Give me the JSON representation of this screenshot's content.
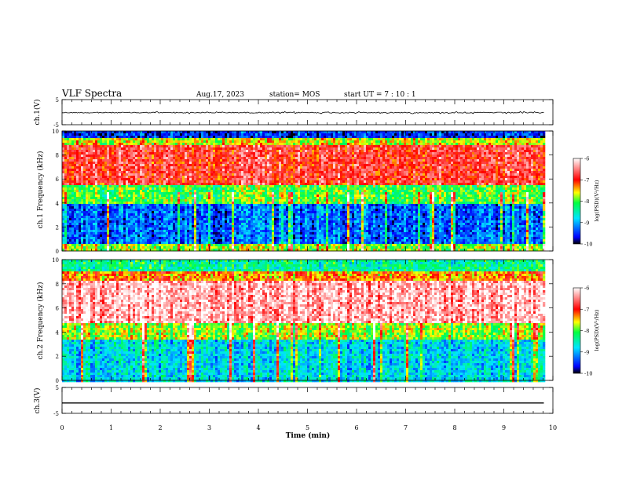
{
  "header": {
    "title": "VLF Spectra",
    "date": "Aug.17, 2023",
    "station": "station= MOS",
    "start": "start  UT =   7 : 10 : 1"
  },
  "chart_data": [
    {
      "type": "line",
      "panel": "ch1-waveform",
      "ylabel": "ch.1(V)",
      "ylim": [
        -5,
        5
      ],
      "yticks": [
        "5",
        "-5"
      ],
      "series": [
        {
          "values_level": -0.2
        }
      ]
    },
    {
      "type": "heatmap",
      "panel": "ch1-spectrogram",
      "ylabel": "ch.1 Frequency (kHz)",
      "ylim": [
        0,
        10
      ],
      "yticks": [
        "0",
        "2",
        "4",
        "6",
        "8",
        "10"
      ],
      "bands_khz": [
        {
          "from": 0,
          "to": 0.6,
          "log_psd": -7.8
        },
        {
          "from": 0.6,
          "to": 4.0,
          "log_psd": -9.3
        },
        {
          "from": 4.0,
          "to": 5.5,
          "log_psd": -8.0
        },
        {
          "from": 5.5,
          "to": 9.0,
          "log_psd": -6.8
        },
        {
          "from": 9.0,
          "to": 9.5,
          "log_psd": -7.6
        },
        {
          "from": 9.5,
          "to": 10,
          "log_psd": -9.5
        }
      ],
      "colorbar": {
        "label": "log(PSD)(V²/Hz)",
        "ticks": [
          "-6",
          "-7",
          "-8",
          "-9",
          "-10"
        ],
        "range": [
          -10,
          -6
        ]
      }
    },
    {
      "type": "heatmap",
      "panel": "ch2-spectrogram",
      "ylabel": "ch.2 Frequency (kHz)",
      "ylim": [
        0,
        10
      ],
      "yticks": [
        "0",
        "2",
        "4",
        "6",
        "8",
        "10"
      ],
      "bands_khz": [
        {
          "from": 0,
          "to": 3.5,
          "log_psd": -8.8
        },
        {
          "from": 3.5,
          "to": 4.8,
          "log_psd": -7.8
        },
        {
          "from": 4.8,
          "to": 8.3,
          "log_psd": -6.3
        },
        {
          "from": 8.3,
          "to": 9.2,
          "log_psd": -7.3
        },
        {
          "from": 9.2,
          "to": 10,
          "log_psd": -8.4
        }
      ],
      "colorbar": {
        "label": "log(PSD)(V²/Hz)",
        "ticks": [
          "-6",
          "-7",
          "-8",
          "-9",
          "-10"
        ],
        "range": [
          -10,
          -6
        ]
      }
    },
    {
      "type": "line",
      "panel": "ch3-waveform",
      "ylabel": "ch.3(V)",
      "ylim": [
        -5,
        5
      ],
      "yticks": [
        "5",
        "-5"
      ],
      "series": [
        {
          "values_level": -1.0
        }
      ]
    }
  ],
  "xaxis": {
    "label": "Time  (min)",
    "ticks": [
      "0",
      "1",
      "2",
      "3",
      "4",
      "5",
      "6",
      "7",
      "8",
      "9",
      "10"
    ],
    "range": [
      0,
      10
    ],
    "data_end": 9.83
  },
  "colors": {
    "jet": [
      "#000000",
      "#0000ff",
      "#00e5ff",
      "#00ff40",
      "#ffff00",
      "#ff0000",
      "#ffffff"
    ]
  }
}
